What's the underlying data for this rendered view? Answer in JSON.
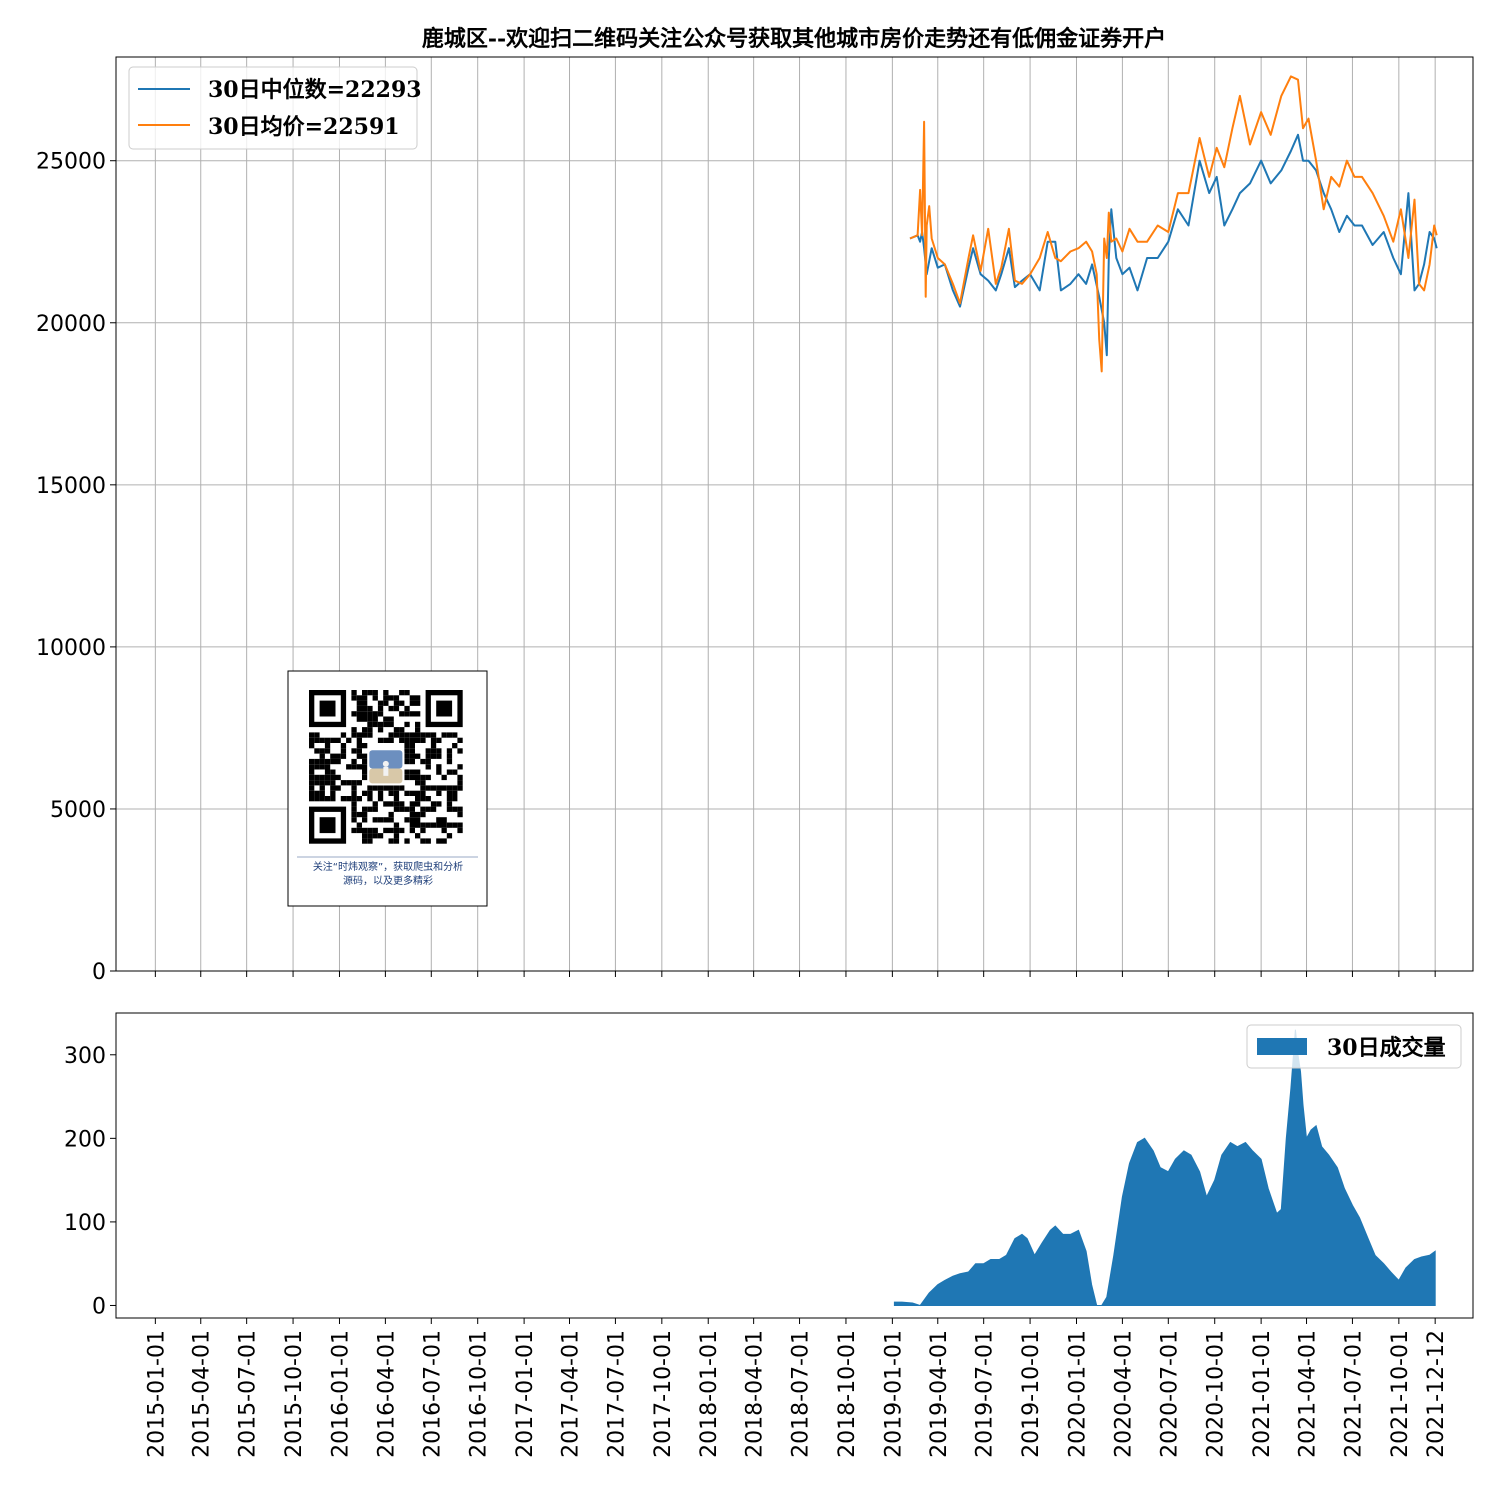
{
  "chart_data": [
    {
      "type": "line",
      "title": "鹿城区--欢迎扫二维码关注公众号获取其他城市房价走势还有低佣金证券开户",
      "ylim": [
        0,
        28200
      ],
      "yticks": [
        0,
        5000,
        10000,
        15000,
        20000,
        25000
      ],
      "xlim": [
        "2014-10-15",
        "2022-02-25"
      ],
      "grid": true,
      "legend": "top-left",
      "series": [
        {
          "name": "30日中位数=22293",
          "color": "#1f77b4",
          "x": [
            "2019-02-05",
            "2019-02-20",
            "2019-02-25",
            "2019-03-01",
            "2019-03-05",
            "2019-03-10",
            "2019-03-20",
            "2019-04-01",
            "2019-04-15",
            "2019-05-01",
            "2019-05-15",
            "2019-06-01",
            "2019-06-10",
            "2019-06-25",
            "2019-07-10",
            "2019-07-25",
            "2019-08-05",
            "2019-08-20",
            "2019-09-01",
            "2019-09-15",
            "2019-10-01",
            "2019-10-20",
            "2019-11-05",
            "2019-11-20",
            "2019-12-01",
            "2019-12-20",
            "2020-01-05",
            "2020-01-20",
            "2020-02-01",
            "2020-02-15",
            "2020-02-25",
            "2020-03-01",
            "2020-03-05",
            "2020-03-10",
            "2020-03-20",
            "2020-04-01",
            "2020-04-15",
            "2020-05-01",
            "2020-05-20",
            "2020-06-10",
            "2020-07-01",
            "2020-07-20",
            "2020-08-10",
            "2020-09-01",
            "2020-09-20",
            "2020-10-05",
            "2020-10-20",
            "2020-11-05",
            "2020-11-20",
            "2020-12-10",
            "2021-01-01",
            "2021-01-20",
            "2021-02-10",
            "2021-03-01",
            "2021-03-15",
            "2021-03-25",
            "2021-04-05",
            "2021-04-20",
            "2021-05-05",
            "2021-05-20",
            "2021-06-05",
            "2021-06-20",
            "2021-07-05",
            "2021-07-20",
            "2021-08-10",
            "2021-09-01",
            "2021-09-20",
            "2021-10-05",
            "2021-10-20",
            "2021-11-01",
            "2021-11-10",
            "2021-11-20",
            "2021-12-01",
            "2021-12-10",
            "2021-12-15"
          ],
          "values": [
            22600,
            22700,
            22500,
            22800,
            22300,
            21500,
            22300,
            21700,
            21800,
            21000,
            20500,
            21700,
            22300,
            21500,
            21300,
            21000,
            21500,
            22300,
            21100,
            21300,
            21500,
            21000,
            22500,
            22500,
            21000,
            21200,
            21500,
            21200,
            21800,
            20800,
            20000,
            19000,
            22000,
            23500,
            22000,
            21500,
            21700,
            21000,
            22000,
            22000,
            22500,
            23500,
            23000,
            25000,
            24000,
            24500,
            23000,
            23500,
            24000,
            24300,
            25000,
            24300,
            24700,
            25300,
            25800,
            25000,
            25000,
            24700,
            24000,
            23500,
            22800,
            23300,
            23000,
            23000,
            22400,
            22800,
            22000,
            21500,
            24000,
            21000,
            21200,
            21800,
            22800,
            22600,
            22300
          ]
        },
        {
          "name": "30日均价=22591",
          "color": "#ff7f0e",
          "x": [
            "2019-02-05",
            "2019-02-20",
            "2019-02-25",
            "2019-03-01",
            "2019-03-05",
            "2019-03-08",
            "2019-03-10",
            "2019-03-15",
            "2019-03-20",
            "2019-04-01",
            "2019-04-15",
            "2019-05-01",
            "2019-05-15",
            "2019-06-01",
            "2019-06-10",
            "2019-06-25",
            "2019-07-10",
            "2019-07-25",
            "2019-08-05",
            "2019-08-20",
            "2019-09-01",
            "2019-09-15",
            "2019-10-01",
            "2019-10-20",
            "2019-11-05",
            "2019-11-20",
            "2019-12-01",
            "2019-12-20",
            "2020-01-05",
            "2020-01-20",
            "2020-02-01",
            "2020-02-10",
            "2020-02-15",
            "2020-02-20",
            "2020-02-25",
            "2020-03-01",
            "2020-03-05",
            "2020-03-10",
            "2020-03-20",
            "2020-04-01",
            "2020-04-15",
            "2020-05-01",
            "2020-05-20",
            "2020-06-10",
            "2020-07-01",
            "2020-07-20",
            "2020-08-10",
            "2020-09-01",
            "2020-09-20",
            "2020-10-05",
            "2020-10-20",
            "2020-11-05",
            "2020-11-20",
            "2020-12-10",
            "2021-01-01",
            "2021-01-20",
            "2021-02-10",
            "2021-03-01",
            "2021-03-15",
            "2021-03-25",
            "2021-04-05",
            "2021-04-20",
            "2021-05-05",
            "2021-05-20",
            "2021-06-05",
            "2021-06-20",
            "2021-07-05",
            "2021-07-20",
            "2021-08-10",
            "2021-09-01",
            "2021-09-20",
            "2021-10-05",
            "2021-10-20",
            "2021-11-01",
            "2021-11-10",
            "2021-11-20",
            "2021-12-01",
            "2021-12-10",
            "2021-12-15"
          ],
          "values": [
            22600,
            22700,
            24100,
            22700,
            26200,
            20800,
            23000,
            23600,
            22600,
            22000,
            21800,
            21200,
            20600,
            22000,
            22700,
            21600,
            22900,
            21200,
            21700,
            22900,
            21300,
            21200,
            21500,
            22000,
            22800,
            22000,
            21900,
            22200,
            22300,
            22500,
            22200,
            21500,
            19500,
            18500,
            22600,
            22000,
            23400,
            22500,
            22600,
            22200,
            22900,
            22500,
            22500,
            23000,
            22800,
            24000,
            24000,
            25700,
            24500,
            25400,
            24800,
            26000,
            27000,
            25500,
            26500,
            25800,
            27000,
            27600,
            27500,
            26000,
            26300,
            25000,
            23500,
            24500,
            24200,
            25000,
            24500,
            24500,
            24000,
            23300,
            22500,
            23500,
            22000,
            23800,
            21200,
            21000,
            21800,
            23000,
            22700
          ]
        }
      ]
    },
    {
      "type": "area",
      "ylim": [
        -15,
        350
      ],
      "yticks": [
        0,
        100,
        200,
        300
      ],
      "xlim": [
        "2014-10-15",
        "2022-02-25"
      ],
      "grid": false,
      "legend": "top-right",
      "xticks": [
        "2015-01-01",
        "2015-04-01",
        "2015-07-01",
        "2015-10-01",
        "2016-01-01",
        "2016-04-01",
        "2016-07-01",
        "2016-10-01",
        "2017-01-01",
        "2017-04-01",
        "2017-07-01",
        "2017-10-01",
        "2018-01-01",
        "2018-04-01",
        "2018-07-01",
        "2018-10-01",
        "2019-01-01",
        "2019-04-01",
        "2019-07-01",
        "2019-10-01",
        "2020-01-01",
        "2020-04-01",
        "2020-07-01",
        "2020-10-01",
        "2021-01-01",
        "2021-04-01",
        "2021-07-01",
        "2021-10-01",
        "2021-12-12"
      ],
      "series": [
        {
          "name": "30日成交量",
          "color": "#1f77b4",
          "x": [
            "2019-01-05",
            "2019-01-20",
            "2019-02-10",
            "2019-02-25",
            "2019-03-15",
            "2019-04-01",
            "2019-04-15",
            "2019-05-01",
            "2019-05-15",
            "2019-06-01",
            "2019-06-15",
            "2019-07-01",
            "2019-07-15",
            "2019-08-01",
            "2019-08-15",
            "2019-09-01",
            "2019-09-15",
            "2019-09-25",
            "2019-10-10",
            "2019-10-25",
            "2019-11-10",
            "2019-11-20",
            "2019-12-05",
            "2019-12-20",
            "2020-01-05",
            "2020-01-20",
            "2020-01-31",
            "2020-02-10",
            "2020-02-20",
            "2020-03-01",
            "2020-03-15",
            "2020-04-01",
            "2020-04-15",
            "2020-05-01",
            "2020-05-15",
            "2020-06-01",
            "2020-06-15",
            "2020-07-01",
            "2020-07-15",
            "2020-08-01",
            "2020-08-15",
            "2020-09-01",
            "2020-09-15",
            "2020-10-01",
            "2020-10-15",
            "2020-11-01",
            "2020-11-15",
            "2020-12-01",
            "2020-12-15",
            "2021-01-01",
            "2021-01-15",
            "2021-02-01",
            "2021-02-10",
            "2021-02-20",
            "2021-03-01",
            "2021-03-10",
            "2021-03-15",
            "2021-03-20",
            "2021-03-25",
            "2021-04-01",
            "2021-04-10",
            "2021-04-20",
            "2021-05-01",
            "2021-05-15",
            "2021-06-01",
            "2021-06-15",
            "2021-07-01",
            "2021-07-15",
            "2021-08-01",
            "2021-08-15",
            "2021-09-01",
            "2021-09-15",
            "2021-10-01",
            "2021-10-15",
            "2021-11-01",
            "2021-11-15",
            "2021-12-01",
            "2021-12-12"
          ],
          "values": [
            4,
            4,
            3,
            0,
            15,
            25,
            30,
            35,
            38,
            40,
            50,
            50,
            55,
            55,
            60,
            80,
            85,
            80,
            60,
            75,
            90,
            95,
            85,
            85,
            90,
            65,
            25,
            0,
            0,
            10,
            60,
            130,
            170,
            195,
            200,
            185,
            165,
            160,
            175,
            185,
            180,
            160,
            130,
            150,
            180,
            195,
            190,
            195,
            185,
            175,
            140,
            110,
            115,
            200,
            260,
            330,
            300,
            280,
            240,
            200,
            210,
            215,
            190,
            180,
            165,
            140,
            120,
            105,
            80,
            60,
            50,
            40,
            30,
            45,
            55,
            58,
            60,
            65
          ]
        }
      ]
    }
  ],
  "qr_caption": [
    "关注“时炜观察”，获取爬虫和分析",
    "源码，以及更多精彩"
  ]
}
